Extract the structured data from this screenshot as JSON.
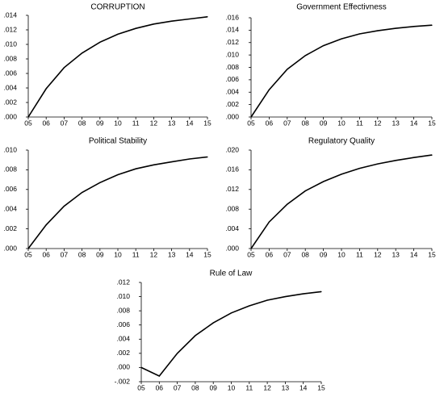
{
  "chart_data": [
    {
      "type": "line",
      "title": "CORRUPTION",
      "xlabel": "",
      "ylabel": "",
      "categories": [
        "05",
        "06",
        "07",
        "08",
        "09",
        "10",
        "11",
        "12",
        "13",
        "14",
        "15"
      ],
      "values": [
        0.0,
        0.0039,
        0.0068,
        0.0088,
        0.0103,
        0.0114,
        0.0122,
        0.0128,
        0.0132,
        0.0135,
        0.0138
      ],
      "yticks": [
        ".000",
        ".002",
        ".004",
        ".006",
        ".008",
        ".010",
        ".012",
        ".014"
      ],
      "ylim": [
        0,
        0.014
      ],
      "grid": false,
      "legend": "none"
    },
    {
      "type": "line",
      "title": "Government Effectivness",
      "xlabel": "",
      "ylabel": "",
      "categories": [
        "05",
        "06",
        "07",
        "08",
        "09",
        "10",
        "11",
        "12",
        "13",
        "14",
        "15"
      ],
      "values": [
        0.0,
        0.0044,
        0.0077,
        0.0099,
        0.0115,
        0.0126,
        0.0134,
        0.0139,
        0.0143,
        0.0146,
        0.0148
      ],
      "yticks": [
        ".000",
        ".002",
        ".004",
        ".006",
        ".008",
        ".010",
        ".012",
        ".014",
        ".016"
      ],
      "ylim": [
        0,
        0.016
      ],
      "grid": false,
      "legend": "none"
    },
    {
      "type": "line",
      "title": "Political Stability",
      "xlabel": "",
      "ylabel": "",
      "categories": [
        "05",
        "06",
        "07",
        "08",
        "09",
        "10",
        "11",
        "12",
        "13",
        "14",
        "15"
      ],
      "values": [
        0.0,
        0.0024,
        0.0043,
        0.0057,
        0.0067,
        0.0075,
        0.0081,
        0.0085,
        0.0088,
        0.0091,
        0.0093
      ],
      "yticks": [
        ".000",
        ".002",
        ".004",
        ".006",
        ".008",
        ".010"
      ],
      "ylim": [
        0,
        0.01
      ],
      "grid": false,
      "legend": "none"
    },
    {
      "type": "line",
      "title": "Regulatory Quality",
      "xlabel": "",
      "ylabel": "",
      "categories": [
        "05",
        "06",
        "07",
        "08",
        "09",
        "10",
        "11",
        "12",
        "13",
        "14",
        "15"
      ],
      "values": [
        0.0,
        0.0054,
        0.009,
        0.0117,
        0.0136,
        0.0151,
        0.0163,
        0.0172,
        0.0179,
        0.0185,
        0.019
      ],
      "yticks": [
        ".000",
        ".004",
        ".008",
        ".012",
        ".016",
        ".020"
      ],
      "ylim": [
        0,
        0.02
      ],
      "grid": false,
      "legend": "none"
    },
    {
      "type": "line",
      "title": "Rule of Law",
      "xlabel": "",
      "ylabel": "",
      "categories": [
        "05",
        "06",
        "07",
        "08",
        "09",
        "10",
        "11",
        "12",
        "13",
        "14",
        "15"
      ],
      "values": [
        0.0,
        -0.0012,
        0.002,
        0.0045,
        0.0063,
        0.0077,
        0.0087,
        0.0095,
        0.01,
        0.0104,
        0.0107
      ],
      "yticks": [
        "-.002",
        ".000",
        ".002",
        ".004",
        ".006",
        ".008",
        ".010",
        ".012"
      ],
      "ylim": [
        -0.002,
        0.012
      ],
      "grid": false,
      "legend": "none"
    }
  ]
}
